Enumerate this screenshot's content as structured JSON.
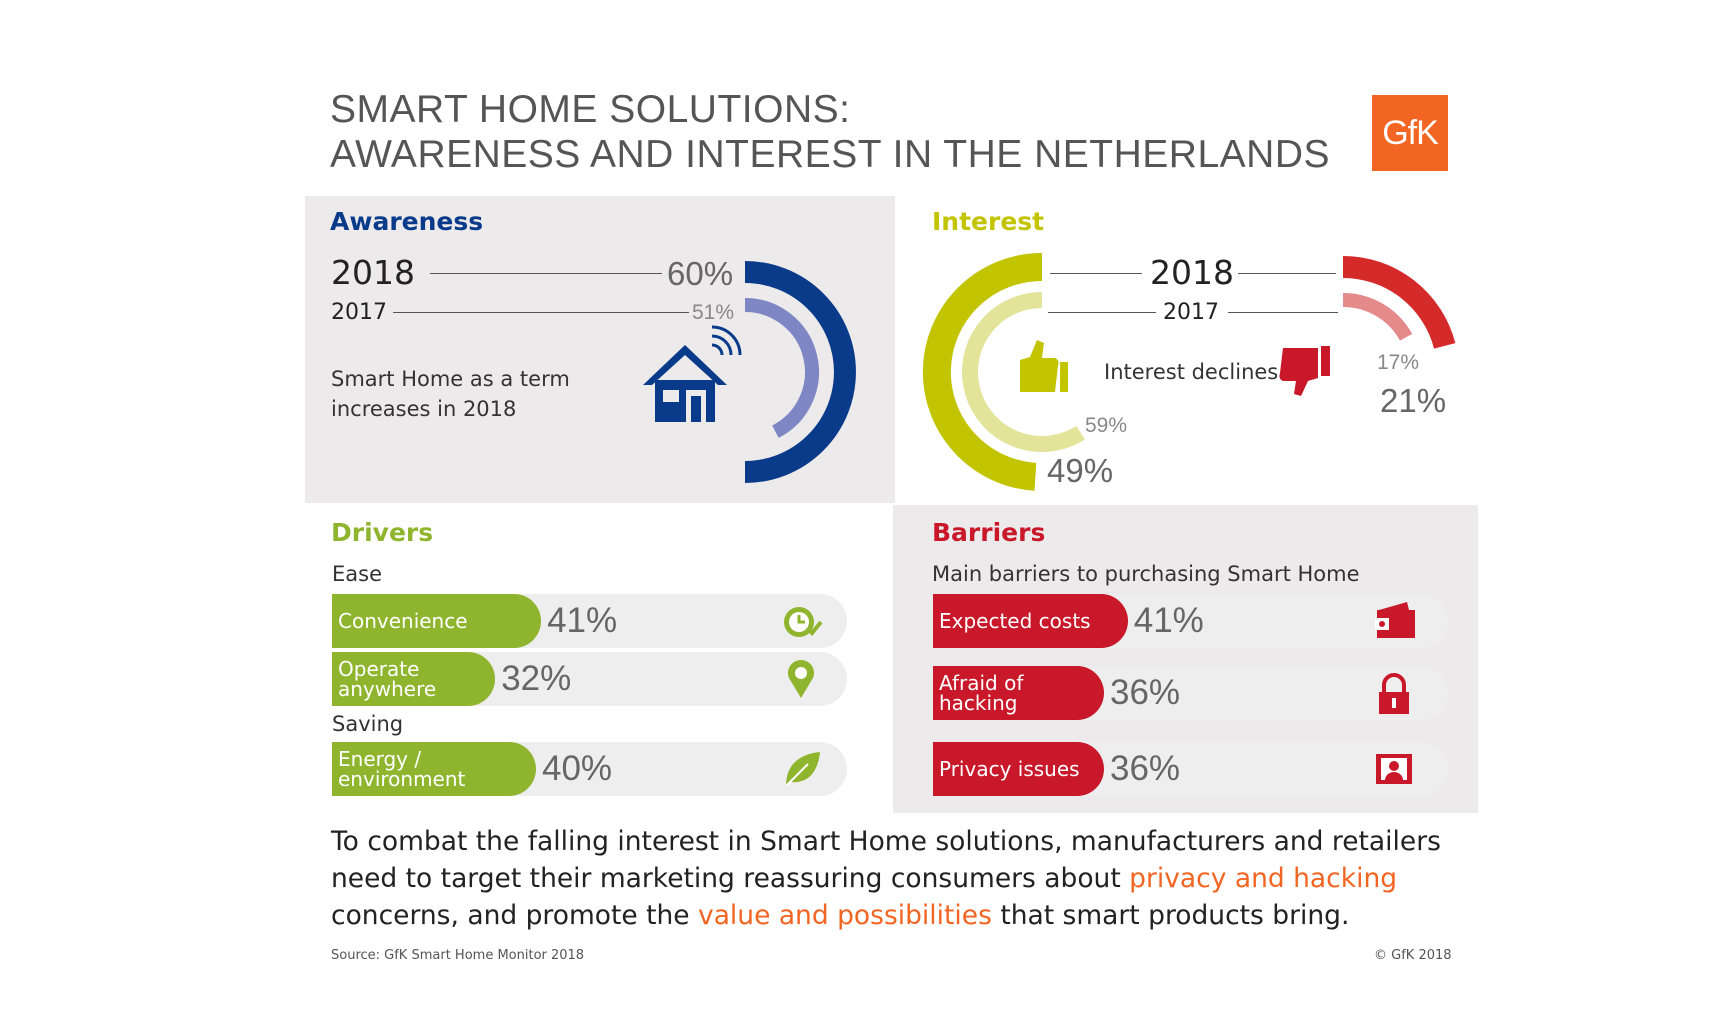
{
  "title": {
    "line1": "SMART HOME SOLUTIONS:",
    "line2": "AWARENESS AND INTEREST IN THE NETHERLANDS"
  },
  "logo": "GfK",
  "colors": {
    "awareness": "#0a3a8a",
    "awareness_light": "#7e86c4",
    "interest": "#c3c400",
    "interest_light": "#e3e39a",
    "decline": "#d42a2a",
    "decline_light": "#e48a8a",
    "drivers": "#8fb52e",
    "barriers": "#c8182a",
    "highlight": "#f26522"
  },
  "awareness": {
    "title": "Awareness",
    "year_2018": "2018",
    "year_2017": "2017",
    "pct_2018": "60%",
    "pct_2017": "51%",
    "note": "Smart Home as a term increases in 2018",
    "icon": "smart-home-icon"
  },
  "interest": {
    "title": "Interest",
    "year_2018": "2018",
    "year_2017": "2017",
    "positive_2018": "49%",
    "positive_2017": "59%",
    "negative_2018": "21%",
    "negative_2017": "17%",
    "note": "Interest declines",
    "icons": [
      "thumbs-up-icon",
      "thumbs-down-icon"
    ]
  },
  "drivers": {
    "title": "Drivers",
    "groups": [
      {
        "label": "Ease"
      },
      {
        "label": "Saving"
      }
    ],
    "items": [
      {
        "label": "Convenience",
        "pct": "41%",
        "icon": "clock-check-icon"
      },
      {
        "label": "Operate anywhere",
        "pct": "32%",
        "icon": "location-pin-icon"
      },
      {
        "label": "Energy / environment",
        "pct": "40%",
        "icon": "leaf-icon"
      }
    ]
  },
  "barriers": {
    "title": "Barriers",
    "subtitle": "Main barriers to purchasing Smart Home",
    "items": [
      {
        "label": "Expected costs",
        "pct": "41%",
        "icon": "wallet-icon"
      },
      {
        "label": "Afraid of hacking",
        "pct": "36%",
        "icon": "padlock-icon"
      },
      {
        "label": "Privacy issues",
        "pct": "36%",
        "icon": "profile-card-icon"
      }
    ]
  },
  "summary": {
    "part1": "To combat the falling interest in Smart Home solutions, manufacturers and retailers need to target their marketing reassuring consumers about ",
    "highlight1": "privacy and hacking",
    "part2": " concerns, and promote the ",
    "highlight2": "value and possibilities",
    "part3": " that smart products bring."
  },
  "footer": {
    "source": "Source: GfK Smart Home Monitor 2018",
    "copyright": "© GfK 2018"
  },
  "chart_data": [
    {
      "type": "radial-bar",
      "title": "Awareness",
      "categories": [
        "2018",
        "2017"
      ],
      "values": [
        60,
        51
      ],
      "unit": "%"
    },
    {
      "type": "radial-bar",
      "title": "Interest",
      "series": [
        {
          "name": "Interested",
          "categories": [
            "2018",
            "2017"
          ],
          "values": [
            49,
            59
          ]
        },
        {
          "name": "Not interested",
          "categories": [
            "2018",
            "2017"
          ],
          "values": [
            21,
            17
          ]
        }
      ],
      "unit": "%"
    },
    {
      "type": "bar",
      "title": "Drivers",
      "categories": [
        "Convenience",
        "Operate anywhere",
        "Energy / environment"
      ],
      "values": [
        41,
        32,
        40
      ],
      "unit": "%"
    },
    {
      "type": "bar",
      "title": "Barriers",
      "categories": [
        "Expected costs",
        "Afraid of hacking",
        "Privacy issues"
      ],
      "values": [
        41,
        36,
        36
      ],
      "unit": "%"
    }
  ]
}
